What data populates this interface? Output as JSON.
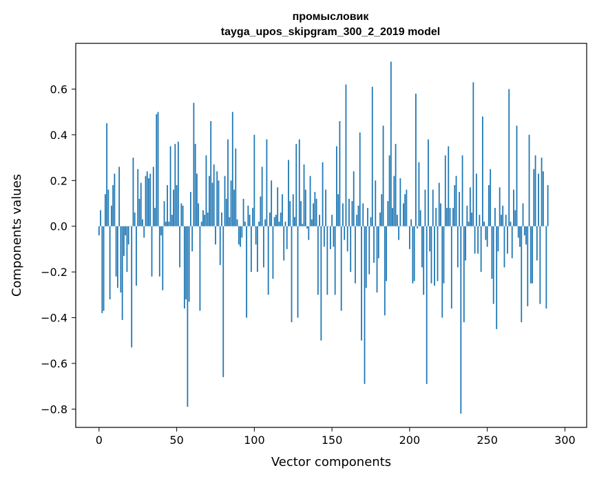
{
  "chart_data": {
    "type": "bar",
    "title": "промысловик",
    "subtitle": "tayga_upos_skipgram_300_2_2019 model",
    "xlabel": "Vector components",
    "ylabel": "Components values",
    "xlim": [
      -15,
      314
    ],
    "ylim": [
      -0.88,
      0.8
    ],
    "xticks": [
      0,
      50,
      100,
      150,
      200,
      250,
      300
    ],
    "yticks": [
      -0.8,
      -0.6,
      -0.4,
      -0.2,
      0.0,
      0.2,
      0.4,
      0.6
    ],
    "ytick_labels": [
      "−0.8",
      "−0.6",
      "−0.4",
      "−0.2",
      "0.0",
      "0.2",
      "0.4",
      "0.6"
    ],
    "bar_color": "#1f77b4",
    "grid": false,
    "values": [
      -0.04,
      0.07,
      -0.38,
      -0.37,
      0.14,
      0.45,
      0.16,
      -0.32,
      0.09,
      0.18,
      0.23,
      -0.22,
      -0.27,
      0.26,
      -0.29,
      -0.41,
      -0.13,
      -0.04,
      -0.2,
      -0.08,
      0.0,
      -0.53,
      0.3,
      0.06,
      -0.26,
      0.25,
      0.12,
      0.19,
      0.03,
      -0.05,
      0.22,
      0.24,
      0.21,
      0.23,
      -0.22,
      0.26,
      0.08,
      0.49,
      0.5,
      -0.22,
      -0.04,
      -0.28,
      0.11,
      0.02,
      0.18,
      0.02,
      0.35,
      0.05,
      0.16,
      0.36,
      0.18,
      0.37,
      -0.18,
      0.1,
      0.09,
      -0.36,
      -0.32,
      -0.79,
      -0.33,
      0.15,
      -0.11,
      0.54,
      0.36,
      0.23,
      0.1,
      -0.37,
      0.02,
      0.07,
      0.05,
      0.31,
      0.06,
      0.22,
      0.46,
      0.19,
      0.27,
      -0.08,
      0.24,
      0.2,
      -0.17,
      0.06,
      -0.66,
      0.22,
      0.12,
      0.38,
      0.04,
      0.2,
      0.5,
      0.16,
      0.34,
      0.03,
      -0.08,
      -0.09,
      -0.05,
      0.12,
      0.02,
      -0.4,
      0.09,
      0.05,
      -0.2,
      0.08,
      0.4,
      -0.08,
      -0.2,
      0.02,
      0.13,
      0.26,
      -0.18,
      0.03,
      0.38,
      -0.3,
      0.06,
      0.2,
      -0.23,
      0.04,
      0.05,
      0.17,
      0.02,
      0.06,
      0.14,
      -0.15,
      0.02,
      -0.1,
      0.29,
      0.11,
      -0.42,
      0.14,
      0.04,
      0.36,
      -0.4,
      0.38,
      0.11,
      0.01,
      0.27,
      0.16,
      -0.01,
      -0.06,
      0.22,
      0.03,
      0.1,
      0.15,
      0.12,
      -0.3,
      0.05,
      -0.5,
      0.28,
      -0.09,
      0.16,
      -0.3,
      0.0,
      -0.1,
      0.05,
      -0.09,
      -0.3,
      0.35,
      0.14,
      0.46,
      -0.37,
      0.1,
      -0.06,
      0.62,
      -0.11,
      0.12,
      -0.2,
      0.11,
      0.24,
      -0.25,
      0.05,
      0.09,
      0.41,
      -0.5,
      0.1,
      -0.69,
      -0.27,
      0.08,
      -0.21,
      0.04,
      0.61,
      -0.16,
      0.2,
      -0.29,
      -0.14,
      0.06,
      0.14,
      0.44,
      -0.39,
      -0.24,
      0.11,
      0.31,
      0.72,
      0.08,
      0.22,
      0.36,
      0.05,
      -0.06,
      0.21,
      0.0,
      0.1,
      0.14,
      0.16,
      0.0,
      -0.1,
      0.03,
      -0.25,
      -0.24,
      0.58,
      -0.01,
      0.28,
      0.07,
      -0.18,
      -0.3,
      0.16,
      -0.69,
      0.38,
      -0.11,
      -0.25,
      0.16,
      -0.26,
      0.08,
      -0.24,
      0.19,
      0.1,
      -0.4,
      -0.25,
      0.31,
      0.08,
      0.35,
      0.08,
      -0.36,
      0.08,
      0.18,
      0.22,
      -0.18,
      0.15,
      -0.82,
      0.31,
      -0.42,
      -0.15,
      0.09,
      0.02,
      0.17,
      0.06,
      0.63,
      -0.12,
      0.23,
      -0.12,
      0.05,
      -0.2,
      0.48,
      0.02,
      -0.06,
      -0.09,
      0.18,
      0.25,
      -0.23,
      -0.34,
      0.08,
      -0.45,
      -0.11,
      0.17,
      0.05,
      0.09,
      -0.18,
      0.05,
      -0.12,
      0.6,
      0.02,
      -0.14,
      0.16,
      0.07,
      0.44,
      -0.05,
      -0.09,
      -0.42,
      0.1,
      -0.04,
      -0.08,
      -0.35,
      0.4,
      -0.25,
      -0.25,
      0.25,
      0.31,
      -0.15,
      0.23,
      -0.34,
      0.3,
      0.24,
      0.0,
      -0.36,
      0.18
    ]
  }
}
